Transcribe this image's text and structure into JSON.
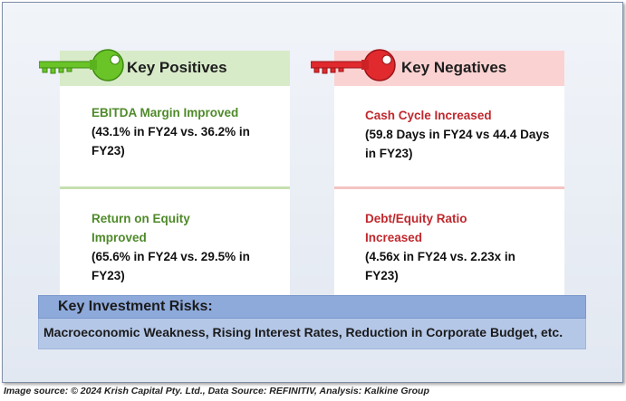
{
  "positives": {
    "title": "Key Positives",
    "items": [
      {
        "head": "EBITDA Margin Improved",
        "detail": "(43.1% in FY24 vs. 36.2% in FY23)"
      },
      {
        "head": "Return on Equity Improved",
        "detail": "(65.6% in FY24 vs. 29.5% in FY23)"
      }
    ]
  },
  "negatives": {
    "title": "Key Negatives",
    "items": [
      {
        "head": "Cash Cycle Increased",
        "detail": "(59.8 Days in FY24 vs 44.4 Days in FY23)"
      },
      {
        "head": "Debt/Equity Ratio Increased",
        "detail": "(4.56x in FY24 vs. 2.23x in FY23)"
      }
    ]
  },
  "risks": {
    "title": "Key Investment Risks:",
    "text": "Macroeconomic Weakness, Rising Interest Rates, Reduction in Corporate Budget, etc."
  },
  "source": "Image source: © 2024 Krish Capital Pty. Ltd., Data Source: REFINITIV, Analysis: Kalkine Group",
  "colors": {
    "positive_accent": "#4f8a2a",
    "positive_key": "#6ac427",
    "negative_accent": "#c0282d",
    "negative_key": "#e02a2e",
    "risk_header": "#8eaadb",
    "risk_body": "#b4c7e7"
  },
  "icons": {
    "positive": "key-icon",
    "negative": "key-icon"
  }
}
